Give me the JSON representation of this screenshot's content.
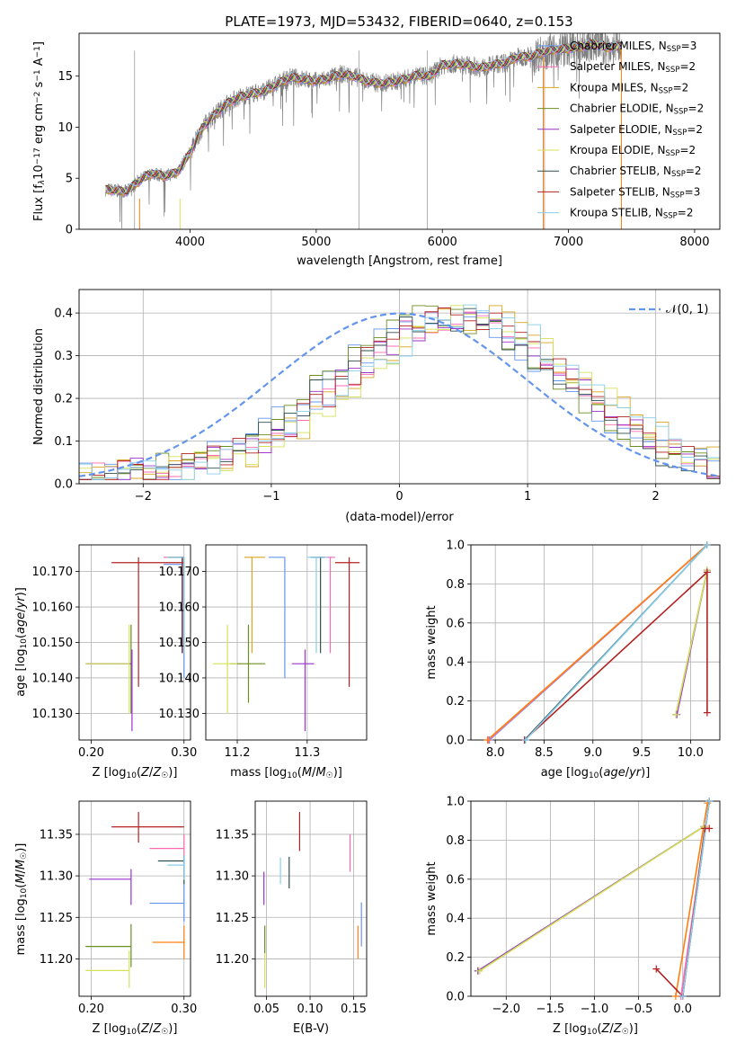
{
  "figure": {
    "title": "PLATE=1973, MJD=53432, FIBERID=0640, z=0.153"
  },
  "legend_entries": [
    {
      "label": "Chabrier MILES, N",
      "sub": "SSP",
      "tail": "=3",
      "color": "#6495ed"
    },
    {
      "label": "Salpeter MILES, N",
      "sub": "SSP",
      "tail": "=2",
      "color": "#ff69b4"
    },
    {
      "label": "Kroupa MILES, N",
      "sub": "SSP",
      "tail": "=2",
      "color": "#daa520"
    },
    {
      "label": "Chabrier ELODIE, N",
      "sub": "SSP",
      "tail": "=2",
      "color": "#6b8e23"
    },
    {
      "label": "Salpeter ELODIE, N",
      "sub": "SSP",
      "tail": "=2",
      "color": "#9932cc"
    },
    {
      "label": "Kroupa ELODIE, N",
      "sub": "SSP",
      "tail": "=2",
      "color": "#d4e157"
    },
    {
      "label": "Chabrier STELIB, N",
      "sub": "SSP",
      "tail": "=2",
      "color": "#2f4f4f"
    },
    {
      "label": "Salpeter STELIB, N",
      "sub": "SSP",
      "tail": "=3",
      "color": "#b22222"
    },
    {
      "label": "Kroupa STELIB, N",
      "sub": "SSP",
      "tail": "=2",
      "color": "#87ceeb"
    }
  ],
  "chart_data": [
    {
      "id": "spectrum",
      "type": "line",
      "xlabel": "wavelength [Angstrom, rest frame]",
      "ylabel_parts": [
        "Flux [f",
        "λ",
        "10",
        "−17",
        " erg cm",
        "−2",
        " s",
        "−1",
        " A",
        "−1",
        "]"
      ],
      "xlim": [
        3120,
        8200
      ],
      "ylim": [
        0,
        19.2
      ],
      "xticks": [
        4000,
        5000,
        6000,
        7000,
        8000
      ],
      "yticks": [
        0,
        5,
        10,
        15
      ],
      "data_color": "#808080",
      "data_anchor_x": [
        3330,
        3400,
        3500,
        3600,
        3700,
        3800,
        3900,
        4000,
        4100,
        4200,
        4300,
        4400,
        4500,
        4600,
        4700,
        4800,
        4900,
        5000,
        5100,
        5200,
        5300,
        5400,
        5500,
        5600,
        5700,
        5800,
        5900,
        6000,
        6100,
        6200,
        6300,
        6400,
        6500,
        6600,
        6700,
        6800,
        6900,
        7000,
        7100,
        7200,
        7300,
        7400
      ],
      "data_anchor_y": [
        3.9,
        3.8,
        3.7,
        4.8,
        5.5,
        5.2,
        5.6,
        7.5,
        10.0,
        11.3,
        12.4,
        13.0,
        13.3,
        13.6,
        14.3,
        14.9,
        14.7,
        14.5,
        14.8,
        15.2,
        15.0,
        14.5,
        14.3,
        14.4,
        14.7,
        15.1,
        15.0,
        16.1,
        16.2,
        16.1,
        15.8,
        16.1,
        16.3,
        16.9,
        16.9,
        17.4,
        17.6,
        17.7,
        17.9,
        18.2,
        17.8,
        17.9
      ],
      "model_x_range": [
        3330,
        7420
      ],
      "data_x_range": [
        3330,
        7420
      ]
    },
    {
      "id": "residuals",
      "type": "histogram",
      "xlabel": "(data-model)/error",
      "ylabel": "Normed distribution",
      "xlim": [
        -2.5,
        2.5
      ],
      "ylim": [
        0,
        0.455
      ],
      "xticks": [
        -2,
        -1,
        0,
        1,
        2
      ],
      "yticks": [
        0.0,
        0.1,
        0.2,
        0.3,
        0.4
      ],
      "normal_label": "𝒩(0, 1)",
      "normal_color": "#6495ed",
      "center": 0.45,
      "sigma": 0.88,
      "peak": 0.37
    },
    {
      "id": "age_vs_Z",
      "type": "errorbar",
      "xlabel": "Z [log10(Z/Z☉)]",
      "ylabel": "age  [log10(age/yr)]",
      "xlim": [
        0.187,
        0.307
      ],
      "ylim": [
        10.1225,
        10.1775
      ],
      "xticks": [
        0.2,
        0.3
      ],
      "yticks": [
        10.13,
        10.14,
        10.15,
        10.16,
        10.17
      ],
      "points": [
        {
          "color": "#6495ed",
          "x": 0.3,
          "y": 10.172,
          "xl": 0.278,
          "xh": 0.3,
          "yl": 10.14,
          "yh": 10.174
        },
        {
          "color": "#ff69b4",
          "x": 0.299,
          "y": 10.174,
          "xl": 0.278,
          "xh": 0.3,
          "yl": 10.147,
          "yh": 10.174
        },
        {
          "color": "#daa520",
          "x": 0.3,
          "y": 10.174,
          "xl": 0.283,
          "xh": 0.3,
          "yl": 10.147,
          "yh": 10.174
        },
        {
          "color": "#6b8e23",
          "x": 0.243,
          "y": 10.144,
          "xl": 0.194,
          "xh": 0.243,
          "yl": 10.13,
          "yh": 10.155
        },
        {
          "color": "#9932cc",
          "x": 0.244,
          "y": 10.144,
          "xl": 0.195,
          "xh": 0.244,
          "yl": 10.125,
          "yh": 10.148
        },
        {
          "color": "#d4e157",
          "x": 0.241,
          "y": 10.144,
          "xl": 0.194,
          "xh": 0.241,
          "yl": 10.13,
          "yh": 10.155
        },
        {
          "color": "#2f4f4f",
          "x": 0.298,
          "y": 10.174,
          "xl": 0.283,
          "xh": 0.3,
          "yl": 10.147,
          "yh": 10.174
        },
        {
          "color": "#b22222",
          "x": 0.251,
          "y": 10.1725,
          "xl": 0.222,
          "xh": 0.3,
          "yl": 10.1375,
          "yh": 10.174
        },
        {
          "color": "#87ceeb",
          "x": 0.3,
          "y": 10.174,
          "xl": 0.282,
          "xh": 0.3,
          "yl": 10.147,
          "yh": 10.174
        }
      ]
    },
    {
      "id": "age_vs_mass",
      "type": "errorbar",
      "xlabel": "mass [log10(M/M☉)]",
      "ylabel": "",
      "xlim": [
        11.155,
        11.385
      ],
      "ylim": [
        10.1225,
        10.1775
      ],
      "xticks": [
        11.2,
        11.3
      ],
      "yticks": [
        10.13,
        10.14,
        10.15,
        10.16,
        10.17
      ],
      "points": [
        {
          "color": "#6495ed",
          "x": 11.268,
          "y": 10.174,
          "xl": 11.245,
          "xh": 11.268,
          "yl": 10.14,
          "yh": 10.174
        },
        {
          "color": "#ff69b4",
          "x": 11.333,
          "y": 10.174,
          "xl": 11.318,
          "xh": 11.34,
          "yl": 10.147,
          "yh": 10.174
        },
        {
          "color": "#daa520",
          "x": 11.221,
          "y": 10.174,
          "xl": 11.21,
          "xh": 11.24,
          "yl": 10.147,
          "yh": 10.174
        },
        {
          "color": "#6b8e23",
          "x": 11.216,
          "y": 10.144,
          "xl": 11.19,
          "xh": 11.24,
          "yl": 10.133,
          "yh": 10.155
        },
        {
          "color": "#9932cc",
          "x": 11.297,
          "y": 10.144,
          "xl": 11.278,
          "xh": 11.31,
          "yl": 10.125,
          "yh": 10.148
        },
        {
          "color": "#d4e157",
          "x": 11.186,
          "y": 10.144,
          "xl": 11.165,
          "xh": 11.2,
          "yl": 10.13,
          "yh": 10.155
        },
        {
          "color": "#2f4f4f",
          "x": 11.319,
          "y": 10.174,
          "xl": 11.305,
          "xh": 11.325,
          "yl": 10.147,
          "yh": 10.174
        },
        {
          "color": "#b22222",
          "x": 11.36,
          "y": 10.1725,
          "xl": 11.34,
          "xh": 11.375,
          "yl": 10.1375,
          "yh": 10.174
        },
        {
          "color": "#87ceeb",
          "x": 11.313,
          "y": 10.174,
          "xl": 11.3,
          "xh": 11.33,
          "yl": 10.147,
          "yh": 10.174
        }
      ]
    },
    {
      "id": "weight_vs_age",
      "type": "line",
      "xlabel": "age  [log10(age/yr)]",
      "ylabel": "mass weight",
      "xlim": [
        7.75,
        10.3
      ],
      "ylim": [
        0,
        1.0
      ],
      "xticks": [
        8.0,
        8.5,
        9.0,
        9.5,
        10.0
      ],
      "yticks": [
        0.0,
        0.2,
        0.4,
        0.6,
        0.8,
        1.0
      ],
      "series": [
        {
          "color": "#6495ed",
          "x": [
            7.94,
            10.17
          ],
          "y": [
            0.0,
            1.0
          ]
        },
        {
          "color": "#ff69b4",
          "x": [
            7.93,
            10.17
          ],
          "y": [
            0.0,
            1.0
          ]
        },
        {
          "color": "#ff7f0e",
          "x": [
            7.92,
            10.17
          ],
          "y": [
            0.0,
            1.0
          ]
        },
        {
          "color": "#6b8e23",
          "x": [
            9.85,
            10.17
          ],
          "y": [
            0.13,
            0.87
          ]
        },
        {
          "color": "#9932cc",
          "x": [
            9.86,
            10.17
          ],
          "y": [
            0.13,
            0.87
          ]
        },
        {
          "color": "#d4e157",
          "x": [
            9.85,
            10.17
          ],
          "y": [
            0.13,
            0.87
          ]
        },
        {
          "color": "#2f4f4f",
          "x": [
            8.3,
            10.17
          ],
          "y": [
            0.0,
            1.0
          ]
        },
        {
          "color": "#b22222",
          "x": [
            8.3,
            10.17,
            10.17
          ],
          "y": [
            0.0,
            0.86,
            0.14
          ]
        },
        {
          "color": "#87ceeb",
          "x": [
            8.31,
            10.17
          ],
          "y": [
            0.0,
            1.0
          ]
        }
      ]
    },
    {
      "id": "mass_vs_Z",
      "type": "errorbar",
      "xlabel": "Z [log10(Z/Z☉)]",
      "ylabel": "mass [log10(M/M☉)]",
      "xlim": [
        0.187,
        0.307
      ],
      "ylim": [
        11.155,
        11.39
      ],
      "xticks": [
        0.2,
        0.3
      ],
      "yticks": [
        11.2,
        11.25,
        11.3,
        11.35
      ],
      "points": [
        {
          "color": "#6495ed",
          "x": 0.3,
          "y": 11.267,
          "xl": 0.263,
          "xh": 0.3,
          "yl": 11.245,
          "yh": 11.29
        },
        {
          "color": "#ff69b4",
          "x": 0.3,
          "y": 11.333,
          "xl": 0.263,
          "xh": 0.3,
          "yl": 11.315,
          "yh": 11.35
        },
        {
          "color": "#ff7f0e",
          "x": 0.3,
          "y": 11.22,
          "xl": 0.266,
          "xh": 0.3,
          "yl": 11.2,
          "yh": 11.24
        },
        {
          "color": "#6b8e23",
          "x": 0.243,
          "y": 11.215,
          "xl": 0.194,
          "xh": 0.243,
          "yl": 11.19,
          "yh": 11.242
        },
        {
          "color": "#9932cc",
          "x": 0.243,
          "y": 11.296,
          "xl": 0.198,
          "xh": 0.243,
          "yl": 11.265,
          "yh": 11.308
        },
        {
          "color": "#d4e157",
          "x": 0.241,
          "y": 11.186,
          "xl": 0.194,
          "xh": 0.241,
          "yl": 11.165,
          "yh": 11.21
        },
        {
          "color": "#2f4f4f",
          "x": 0.3,
          "y": 11.318,
          "xl": 0.272,
          "xh": 0.3,
          "yl": 11.29,
          "yh": 11.325
        },
        {
          "color": "#b22222",
          "x": 0.251,
          "y": 11.359,
          "xl": 0.222,
          "xh": 0.3,
          "yl": 11.34,
          "yh": 11.377
        },
        {
          "color": "#87ceeb",
          "x": 0.3,
          "y": 11.313,
          "xl": 0.282,
          "xh": 0.3,
          "yl": 11.295,
          "yh": 11.325
        }
      ]
    },
    {
      "id": "mass_vs_ebv",
      "type": "errorbar",
      "xlabel": "E(B-V)",
      "ylabel": "",
      "xlim": [
        0.037,
        0.165
      ],
      "ylim": [
        11.155,
        11.39
      ],
      "xticks": [
        0.05,
        0.1,
        0.15
      ],
      "yticks": [
        11.2,
        11.25,
        11.3,
        11.35
      ],
      "points": [
        {
          "color": "#6495ed",
          "x": 0.159,
          "y": 11.245,
          "yl": 11.215,
          "yh": 11.268
        },
        {
          "color": "#ff69b4",
          "x": 0.146,
          "y": 11.328,
          "yl": 11.305,
          "yh": 11.35
        },
        {
          "color": "#ff7f0e",
          "x": 0.155,
          "y": 11.22,
          "yl": 11.2,
          "yh": 11.24
        },
        {
          "color": "#6b8e23",
          "x": 0.048,
          "y": 11.225,
          "yl": 11.207,
          "yh": 11.24
        },
        {
          "color": "#9932cc",
          "x": 0.047,
          "y": 11.285,
          "yl": 11.265,
          "yh": 11.305
        },
        {
          "color": "#d4e157",
          "x": 0.048,
          "y": 11.185,
          "yl": 11.165,
          "yh": 11.207
        },
        {
          "color": "#2f4f4f",
          "x": 0.076,
          "y": 11.305,
          "yl": 11.285,
          "yh": 11.323
        },
        {
          "color": "#b22222",
          "x": 0.088,
          "y": 11.355,
          "yl": 11.33,
          "yh": 11.377
        },
        {
          "color": "#87ceeb",
          "x": 0.066,
          "y": 11.305,
          "yl": 11.29,
          "yh": 11.322
        }
      ]
    },
    {
      "id": "weight_vs_Z",
      "type": "line",
      "xlabel": "Z [log10(Z/Z☉)]",
      "ylabel": "mass weight",
      "xlim": [
        -2.4,
        0.42
      ],
      "ylim": [
        0,
        1.0
      ],
      "xticks": [
        -2.0,
        -1.5,
        -1.0,
        -0.5,
        0.0
      ],
      "yticks": [
        0.0,
        0.2,
        0.4,
        0.6,
        0.8,
        1.0
      ],
      "series": [
        {
          "color": "#6495ed",
          "x": [
            0.0,
            0.3
          ],
          "y": [
            0.0,
            1.0
          ]
        },
        {
          "color": "#ff69b4",
          "x": [
            -0.02,
            0.3
          ],
          "y": [
            0.0,
            1.0
          ]
        },
        {
          "color": "#ff7f0e",
          "x": [
            -0.08,
            0.28
          ],
          "y": [
            0.0,
            0.99
          ]
        },
        {
          "color": "#6b8e23",
          "x": [
            -2.32,
            0.24
          ],
          "y": [
            0.13,
            0.87
          ]
        },
        {
          "color": "#9932cc",
          "x": [
            -2.32,
            0.24
          ],
          "y": [
            0.13,
            0.87
          ]
        },
        {
          "color": "#d4e157",
          "x": [
            -2.3,
            0.24
          ],
          "y": [
            0.13,
            0.87
          ]
        },
        {
          "color": "#2f4f4f",
          "x": [
            0.0,
            0.3
          ],
          "y": [
            0.0,
            1.0
          ]
        },
        {
          "color": "#b22222",
          "x": [
            -0.3,
            0.0,
            0.25,
            0.3
          ],
          "y": [
            0.14,
            0.0,
            0.86,
            0.86
          ]
        },
        {
          "color": "#87ceeb",
          "x": [
            0.0,
            0.3
          ],
          "y": [
            0.0,
            1.0
          ]
        }
      ]
    }
  ]
}
